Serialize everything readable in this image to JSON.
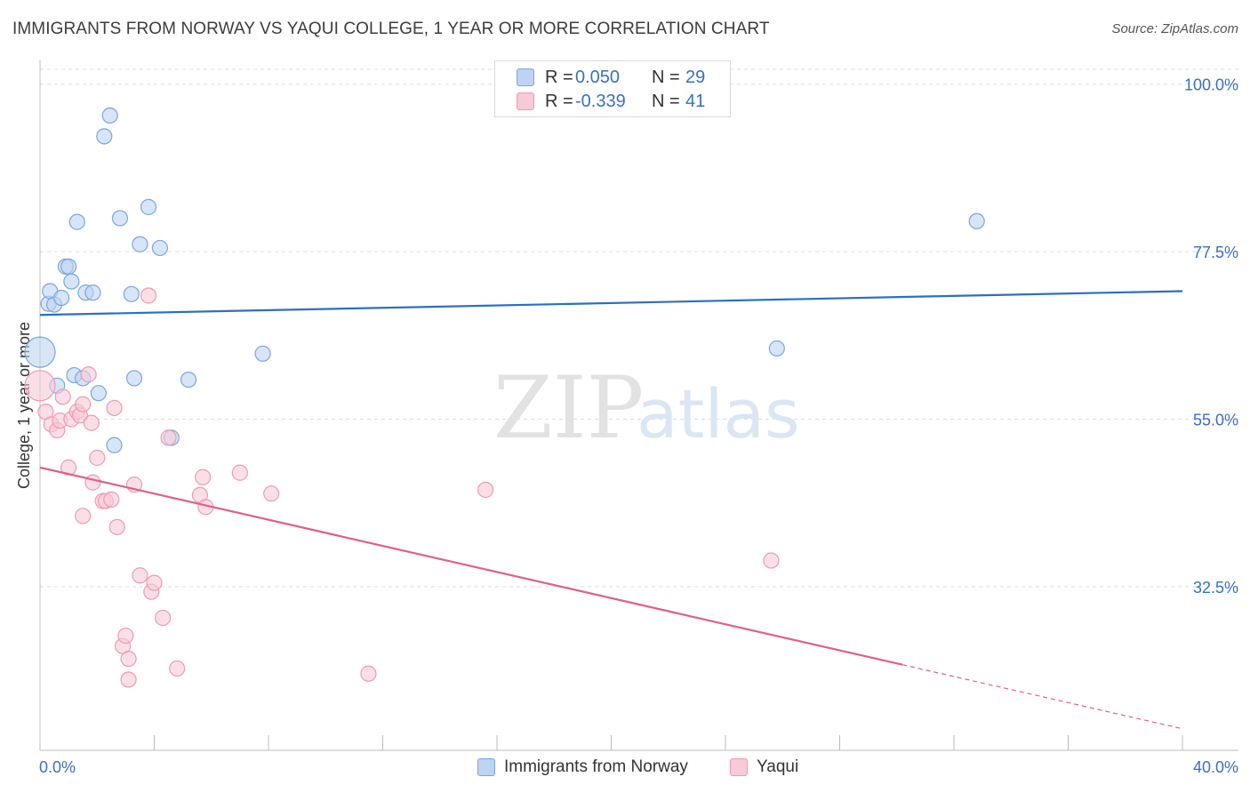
{
  "title": "IMMIGRANTS FROM NORWAY VS YAQUI COLLEGE, 1 YEAR OR MORE CORRELATION CHART",
  "source": "Source: ZipAtlas.com",
  "watermark": {
    "zip": "ZIP",
    "atlas": "atlas"
  },
  "legend": {
    "rows": [
      {
        "r_label": "R =",
        "r_value": "0.050",
        "n_label": "N =",
        "n_value": "29"
      },
      {
        "r_label": "R =",
        "r_value": "-0.339",
        "n_label": "N =",
        "n_value": "41"
      }
    ]
  },
  "bottom_legend": {
    "series1": "Immigrants from Norway",
    "series2": "Yaqui"
  },
  "chart_data": {
    "type": "scatter",
    "title": "IMMIGRANTS FROM NORWAY VS YAQUI COLLEGE, 1 YEAR OR MORE CORRELATION CHART",
    "xlabel": "",
    "ylabel": "College, 1 year or more",
    "xlim": [
      0,
      40
    ],
    "ylim": [
      10.5,
      102
    ],
    "x_tick_labels": {
      "min": "0.0%",
      "max": "40.0%"
    },
    "y_ticks": [
      {
        "value": 100,
        "label": "100.0%"
      },
      {
        "value": 77.5,
        "label": "77.5%"
      },
      {
        "value": 55,
        "label": "55.0%"
      },
      {
        "value": 32.5,
        "label": "32.5%"
      }
    ],
    "grid": true,
    "colors": {
      "norway": "#7aa6e0",
      "norway_fill": "#bcd3f2",
      "norway_line": "#2a6fc9",
      "yaqui": "#ee9ab4",
      "yaqui_fill": "#f8c9d7",
      "yaqui_line": "#e0608a"
    },
    "series": [
      {
        "name": "Immigrants from Norway",
        "R": 0.05,
        "N": 29,
        "trend": {
          "x": [
            0,
            40
          ],
          "y": [
            69.0,
            72.2
          ]
        },
        "points": [
          {
            "x": 0.0,
            "y": 64.0,
            "size": "large"
          },
          {
            "x": 0.3,
            "y": 70.5
          },
          {
            "x": 0.35,
            "y": 72.2
          },
          {
            "x": 0.5,
            "y": 70.4
          },
          {
            "x": 0.6,
            "y": 59.5
          },
          {
            "x": 0.75,
            "y": 71.3
          },
          {
            "x": 0.9,
            "y": 75.5
          },
          {
            "x": 1.0,
            "y": 75.5
          },
          {
            "x": 1.1,
            "y": 73.5
          },
          {
            "x": 1.2,
            "y": 60.9
          },
          {
            "x": 1.3,
            "y": 81.5
          },
          {
            "x": 1.5,
            "y": 60.5
          },
          {
            "x": 1.6,
            "y": 72.0
          },
          {
            "x": 1.85,
            "y": 72.0
          },
          {
            "x": 2.05,
            "y": 58.5
          },
          {
            "x": 2.25,
            "y": 93.0
          },
          {
            "x": 2.45,
            "y": 95.8
          },
          {
            "x": 2.6,
            "y": 51.5
          },
          {
            "x": 2.8,
            "y": 82.0
          },
          {
            "x": 3.2,
            "y": 71.8
          },
          {
            "x": 3.3,
            "y": 60.5
          },
          {
            "x": 3.5,
            "y": 78.5
          },
          {
            "x": 3.8,
            "y": 83.5
          },
          {
            "x": 4.2,
            "y": 78.0
          },
          {
            "x": 4.6,
            "y": 52.5
          },
          {
            "x": 5.2,
            "y": 60.3
          },
          {
            "x": 7.8,
            "y": 63.8
          },
          {
            "x": 25.8,
            "y": 64.5
          },
          {
            "x": 32.8,
            "y": 81.6
          }
        ]
      },
      {
        "name": "Yaqui",
        "R": -0.339,
        "N": 41,
        "trend": {
          "x": [
            0,
            30.2
          ],
          "y": [
            48.5,
            22.0
          ]
        },
        "trend_dashed": {
          "x": [
            30.2,
            40
          ],
          "y": [
            22.0,
            13.4
          ]
        },
        "points": [
          {
            "x": 0.0,
            "y": 59.5,
            "size": "large"
          },
          {
            "x": 0.2,
            "y": 56.0
          },
          {
            "x": 0.4,
            "y": 54.3
          },
          {
            "x": 0.6,
            "y": 53.5
          },
          {
            "x": 0.7,
            "y": 54.8
          },
          {
            "x": 0.8,
            "y": 58.0
          },
          {
            "x": 1.0,
            "y": 48.5
          },
          {
            "x": 1.1,
            "y": 55.0
          },
          {
            "x": 1.3,
            "y": 56.0
          },
          {
            "x": 1.4,
            "y": 55.5
          },
          {
            "x": 1.5,
            "y": 57.0
          },
          {
            "x": 1.5,
            "y": 42.0
          },
          {
            "x": 1.7,
            "y": 61.0
          },
          {
            "x": 1.8,
            "y": 54.5
          },
          {
            "x": 1.85,
            "y": 46.5
          },
          {
            "x": 2.0,
            "y": 49.8
          },
          {
            "x": 2.2,
            "y": 44.0
          },
          {
            "x": 2.3,
            "y": 44.0
          },
          {
            "x": 2.5,
            "y": 44.2
          },
          {
            "x": 2.6,
            "y": 56.5
          },
          {
            "x": 2.7,
            "y": 40.5
          },
          {
            "x": 2.9,
            "y": 24.5
          },
          {
            "x": 3.0,
            "y": 25.9
          },
          {
            "x": 3.1,
            "y": 22.8
          },
          {
            "x": 3.1,
            "y": 20.0
          },
          {
            "x": 3.3,
            "y": 46.2
          },
          {
            "x": 3.5,
            "y": 34.0
          },
          {
            "x": 3.8,
            "y": 71.6
          },
          {
            "x": 3.9,
            "y": 31.8
          },
          {
            "x": 4.0,
            "y": 33.0
          },
          {
            "x": 4.3,
            "y": 28.3
          },
          {
            "x": 4.5,
            "y": 52.5
          },
          {
            "x": 4.8,
            "y": 21.5
          },
          {
            "x": 5.6,
            "y": 44.8
          },
          {
            "x": 5.7,
            "y": 47.2
          },
          {
            "x": 5.8,
            "y": 43.2
          },
          {
            "x": 7.0,
            "y": 47.8
          },
          {
            "x": 8.1,
            "y": 45.0
          },
          {
            "x": 11.5,
            "y": 20.8
          },
          {
            "x": 15.6,
            "y": 45.5
          },
          {
            "x": 25.6,
            "y": 36.0
          }
        ]
      }
    ]
  }
}
